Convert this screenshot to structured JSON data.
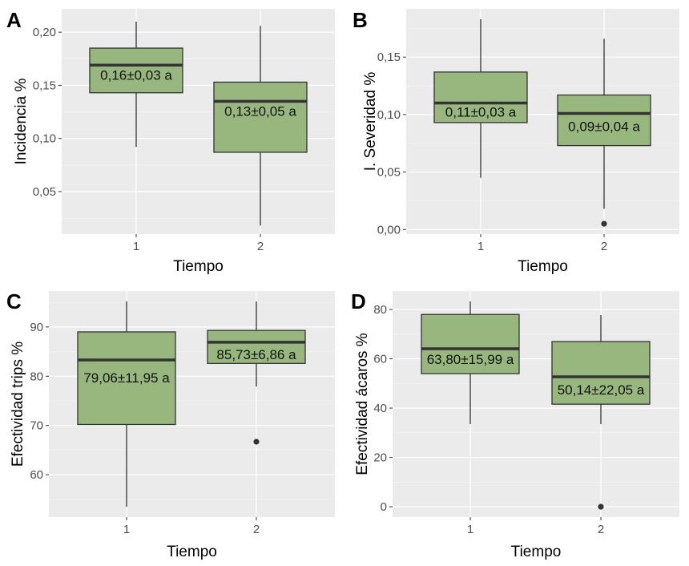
{
  "figure": {
    "box_fill": "#98b77e",
    "box_stroke": "#333333",
    "panel_background": "#ebebeb"
  },
  "chart_data": [
    {
      "panel": "A",
      "type": "boxplot",
      "title": "",
      "xlabel": "Tiempo",
      "ylabel": "Incidencia %",
      "categories": [
        "1",
        "2"
      ],
      "yticks": [
        0.05,
        0.1,
        0.15,
        0.2
      ],
      "ytick_labels": [
        "0,05",
        "0,10",
        "0,15",
        "0,20"
      ],
      "ylim": [
        0.01,
        0.222
      ],
      "grid": true,
      "boxes": [
        {
          "x": "1",
          "whisker_low": 0.092,
          "q1": 0.143,
          "median": 0.169,
          "q3": 0.185,
          "whisker_high": 0.21,
          "outliers": [],
          "label": "0,16±0,03 a",
          "mean": 0.16,
          "sd": 0.03,
          "group": "a"
        },
        {
          "x": "2",
          "whisker_low": 0.018,
          "q1": 0.087,
          "median": 0.135,
          "q3": 0.153,
          "whisker_high": 0.206,
          "outliers": [],
          "label": "0,13±0,05 a",
          "mean": 0.13,
          "sd": 0.05,
          "group": "a"
        }
      ]
    },
    {
      "panel": "B",
      "type": "boxplot",
      "title": "",
      "xlabel": "Tiempo",
      "ylabel": "I. Severidad %",
      "categories": [
        "1",
        "2"
      ],
      "yticks": [
        0.0,
        0.05,
        0.1,
        0.15
      ],
      "ytick_labels": [
        "0,00",
        "0,05",
        "0,10",
        "0,15"
      ],
      "ylim": [
        -0.004,
        0.192
      ],
      "grid": true,
      "boxes": [
        {
          "x": "1",
          "whisker_low": 0.045,
          "q1": 0.093,
          "median": 0.11,
          "q3": 0.137,
          "whisker_high": 0.183,
          "outliers": [],
          "label": "0,11±0,03 a",
          "mean": 0.11,
          "sd": 0.03,
          "group": "a"
        },
        {
          "x": "2",
          "whisker_low": 0.018,
          "q1": 0.073,
          "median": 0.101,
          "q3": 0.117,
          "whisker_high": 0.166,
          "outliers": [
            0.005
          ],
          "label": "0,09±0,04 a",
          "mean": 0.09,
          "sd": 0.04,
          "group": "a"
        }
      ]
    },
    {
      "panel": "C",
      "type": "boxplot",
      "title": "",
      "xlabel": "Tiempo",
      "ylabel": "Efectividad trips %",
      "categories": [
        "1",
        "2"
      ],
      "yticks": [
        60,
        70,
        80,
        90
      ],
      "ytick_labels": [
        "60",
        "70",
        "80",
        "90"
      ],
      "ylim": [
        51.4,
        97.3
      ],
      "grid": true,
      "boxes": [
        {
          "x": "1",
          "whisker_low": 53.5,
          "q1": 70.2,
          "median": 83.3,
          "q3": 89.0,
          "whisker_high": 95.2,
          "outliers": [],
          "label": "79,06±11,95 a",
          "mean": 79.06,
          "sd": 11.95,
          "group": "a"
        },
        {
          "x": "2",
          "whisker_low": 77.9,
          "q1": 82.6,
          "median": 86.9,
          "q3": 89.3,
          "whisker_high": 95.2,
          "outliers": [
            66.7
          ],
          "label": "85,73±6,86 a",
          "mean": 85.73,
          "sd": 6.86,
          "group": "a"
        }
      ]
    },
    {
      "panel": "D",
      "type": "boxplot",
      "title": "",
      "xlabel": "Tiempo",
      "ylabel": "Efectividad ácaros %",
      "categories": [
        "1",
        "2"
      ],
      "yticks": [
        0,
        20,
        40,
        60,
        80
      ],
      "ytick_labels": [
        "0",
        "20",
        "40",
        "60",
        "80"
      ],
      "ylim": [
        -4.2,
        87.5
      ],
      "grid": true,
      "boxes": [
        {
          "x": "1",
          "whisker_low": 33.5,
          "q1": 54.0,
          "median": 64.1,
          "q3": 78.0,
          "whisker_high": 83.3,
          "outliers": [],
          "label": "63,80±15,99 a",
          "mean": 63.8,
          "sd": 15.99,
          "group": "a"
        },
        {
          "x": "2",
          "whisker_low": 33.5,
          "q1": 41.6,
          "median": 52.7,
          "q3": 67.0,
          "whisker_high": 77.7,
          "outliers": [
            0
          ],
          "label": "50,14±22,05 a",
          "mean": 50.14,
          "sd": 22.05,
          "group": "a"
        }
      ]
    }
  ]
}
